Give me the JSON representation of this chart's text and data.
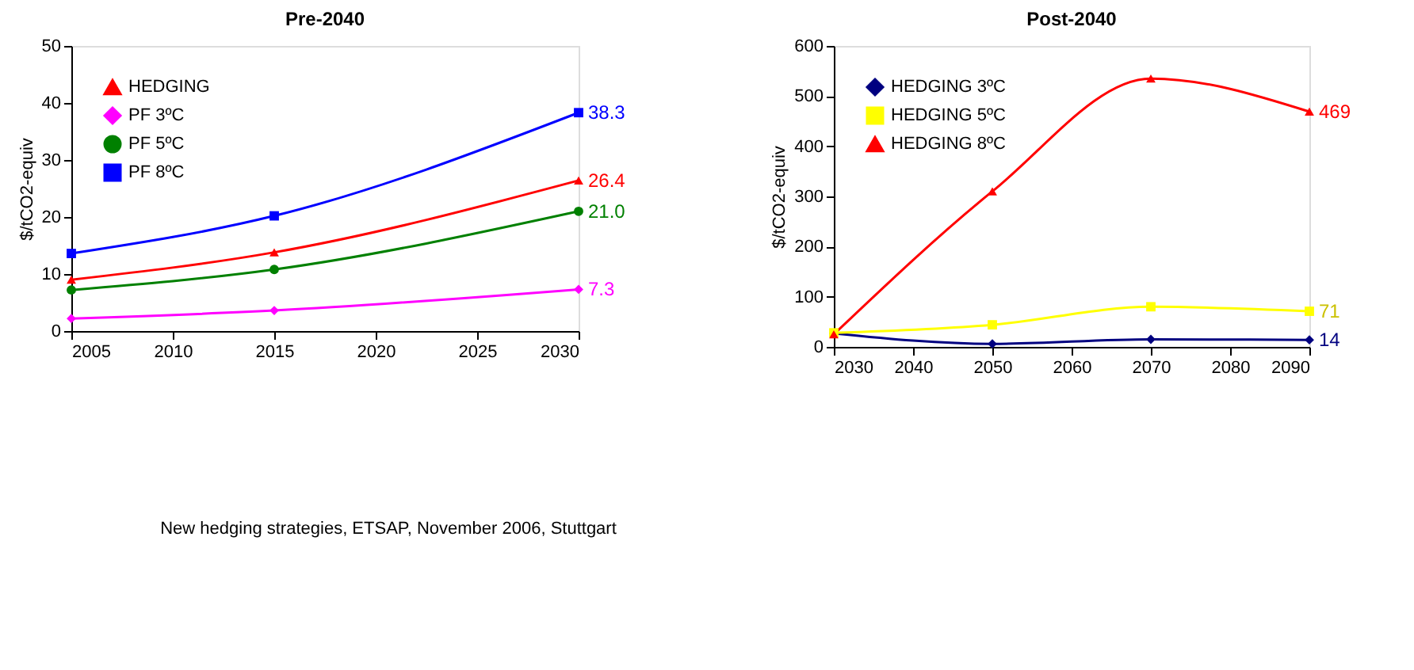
{
  "chart_data": [
    {
      "type": "line",
      "title": "Pre-2040",
      "ylabel": "$/tCO2-equiv",
      "x": [
        2005,
        2015,
        2030
      ],
      "xlim": [
        2005,
        2030
      ],
      "xticks": [
        2005,
        2010,
        2015,
        2020,
        2025,
        2030
      ],
      "ylim": [
        0,
        50
      ],
      "yticks": [
        0,
        10,
        20,
        30,
        40,
        50
      ],
      "grid": false,
      "legend": "top left",
      "series": [
        {
          "name": "HEDGING",
          "color": "#ff0000",
          "marker": "triangle",
          "values": [
            9.0,
            13.8,
            26.4
          ],
          "value_labels": [
            null,
            null,
            "26.4"
          ]
        },
        {
          "name": "PF 3ºC",
          "color": "#ff00ff",
          "marker": "diamond",
          "values": [
            2.2,
            3.6,
            7.3
          ],
          "value_labels": [
            null,
            null,
            "7.3"
          ]
        },
        {
          "name": "PF 5ºC",
          "color": "#008000",
          "marker": "circle",
          "values": [
            7.2,
            10.8,
            21.0
          ],
          "value_labels": [
            null,
            null,
            "21.0"
          ]
        },
        {
          "name": "PF 8ºC",
          "color": "#0000ff",
          "marker": "square",
          "values": [
            13.6,
            20.2,
            38.3
          ],
          "value_labels": [
            null,
            null,
            "38.3"
          ]
        }
      ],
      "annotations": [
        "New hedging strategies, ETSAP, November 2006, Stuttgart"
      ]
    },
    {
      "type": "line",
      "title": "Post-2040",
      "ylabel": "$/tCO2-equiv",
      "x": [
        2030,
        2050,
        2070,
        2090
      ],
      "xlim": [
        2030,
        2090
      ],
      "xticks": [
        2030,
        2040,
        2050,
        2060,
        2070,
        2080,
        2090
      ],
      "ylim": [
        0,
        600
      ],
      "yticks": [
        0,
        100,
        200,
        300,
        400,
        500,
        600
      ],
      "grid": false,
      "legend": "top left",
      "series": [
        {
          "name": "HEDGING 3ºC",
          "color": "#000080",
          "marker": "diamond",
          "values": [
            27,
            6,
            15,
            14
          ],
          "value_labels": [
            null,
            null,
            null,
            "14"
          ]
        },
        {
          "name": "HEDGING 5ºC",
          "color": "#ffff00",
          "marker": "square",
          "values": [
            28,
            44,
            80,
            71
          ],
          "value_labels": [
            null,
            null,
            null,
            "71"
          ]
        },
        {
          "name": "HEDGING 8ºC",
          "color": "#ff0000",
          "marker": "triangle",
          "values": [
            25,
            310,
            535,
            469
          ],
          "value_labels": [
            null,
            null,
            null,
            "469"
          ]
        }
      ]
    }
  ]
}
